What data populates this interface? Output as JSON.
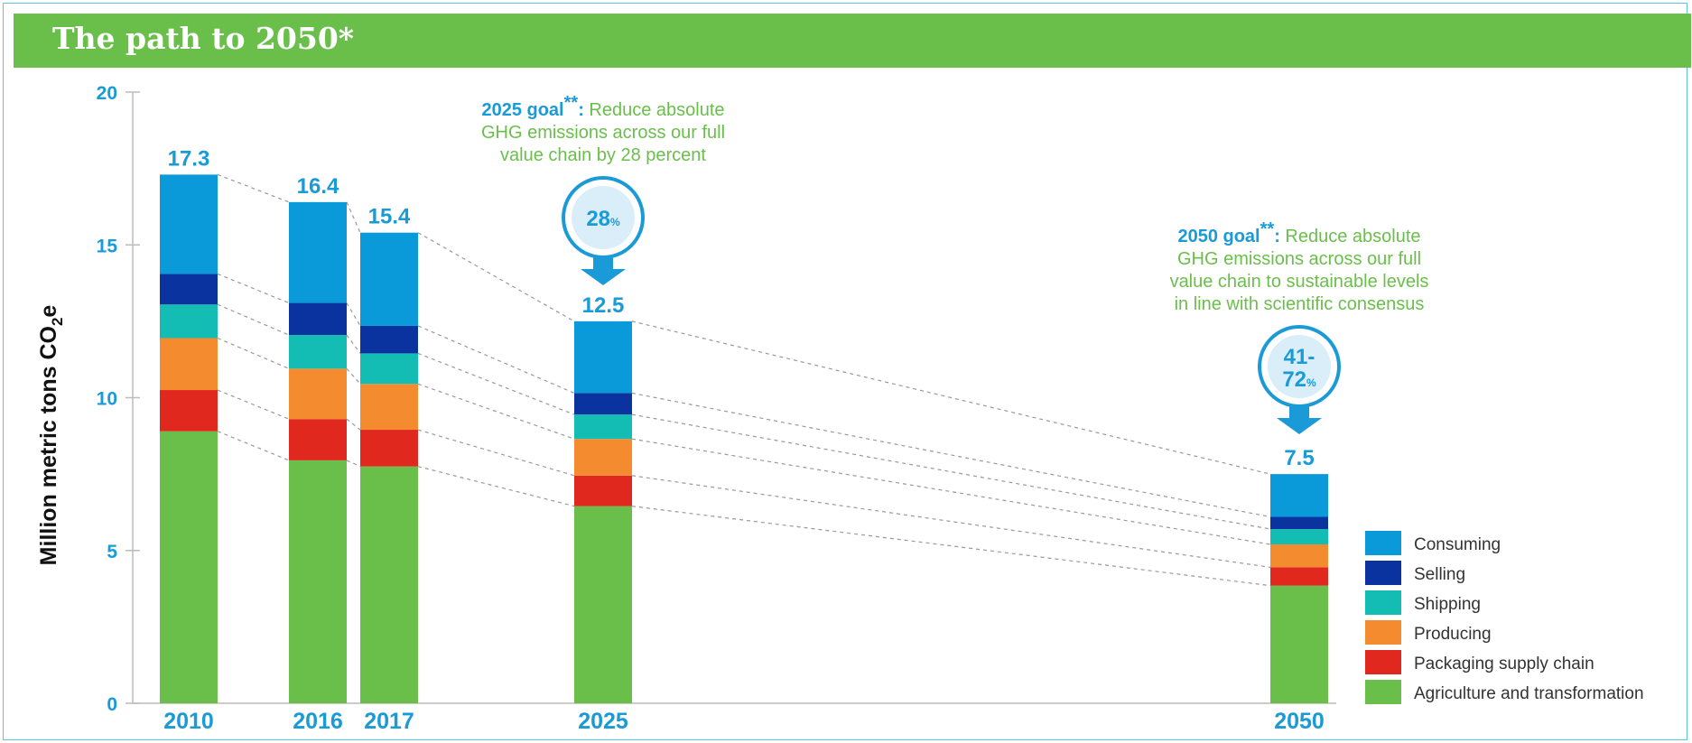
{
  "page": {
    "title": "The path to 2050*"
  },
  "chart_data": {
    "type": "bar",
    "stacked": true,
    "ylabel": "Million metric tons CO2e",
    "ylabel_main": "Million metric tons CO",
    "ylabel_sub": "2",
    "ylabel_tail": "e",
    "ylim": [
      0,
      20
    ],
    "yticks": [
      0,
      5,
      10,
      15,
      20
    ],
    "grid": false,
    "categories": [
      "2010",
      "2016",
      "2017",
      "2025",
      "2050"
    ],
    "totals": [
      17.3,
      16.4,
      15.4,
      12.5,
      7.5
    ],
    "total_labels": [
      "17.3",
      "16.4",
      "15.4",
      "12.5",
      "7.5"
    ],
    "series": [
      {
        "name": "Agriculture and transformation",
        "color": "#6abf4b",
        "values": [
          8.9,
          7.95,
          7.75,
          6.45,
          3.85
        ]
      },
      {
        "name": "Packaging supply chain",
        "color": "#e0281e",
        "values": [
          1.35,
          1.35,
          1.2,
          1.0,
          0.6
        ]
      },
      {
        "name": "Producing",
        "color": "#f48c2f",
        "values": [
          1.7,
          1.65,
          1.5,
          1.2,
          0.75
        ]
      },
      {
        "name": "Shipping",
        "color": "#14bdb4",
        "values": [
          1.1,
          1.1,
          1.0,
          0.8,
          0.5
        ]
      },
      {
        "name": "Selling",
        "color": "#0a33a0",
        "values": [
          1.0,
          1.05,
          0.9,
          0.7,
          0.4
        ]
      },
      {
        "name": "Consuming",
        "color": "#0a99d9",
        "values": [
          3.25,
          3.3,
          3.05,
          2.35,
          1.4
        ]
      }
    ],
    "legend": {
      "placement": "bottom-right",
      "entries": [
        "Consuming",
        "Selling",
        "Shipping",
        "Producing",
        "Packaging supply chain",
        "Agriculture and transformation"
      ]
    },
    "annotations": [
      {
        "target": "2025",
        "head": "2025 goal",
        "marker": "**",
        "sep": ":",
        "text_lines": [
          " Reduce absolute",
          "GHG emissions across our full",
          "value chain by 28 percent"
        ],
        "badge_lines": [
          "28"
        ],
        "badge_suffix": "%"
      },
      {
        "target": "2050",
        "head": "2050 goal",
        "marker": "**",
        "sep": ":",
        "text_lines": [
          " Reduce absolute",
          "GHG emissions across our full",
          "value chain to sustainable levels",
          "in line with scientific consensus"
        ],
        "badge_lines": [
          "41-",
          "72"
        ],
        "badge_suffix": "%"
      }
    ]
  },
  "colors": {
    "accent_blue": "#1a9ad6",
    "header_green": "#6abf4b"
  },
  "icons": [
    "down-arrow-icon"
  ]
}
